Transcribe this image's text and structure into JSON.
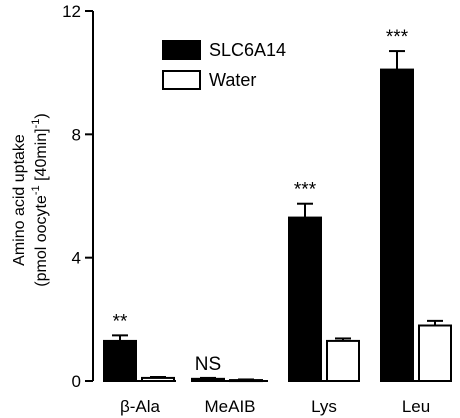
{
  "chart_data": {
    "type": "bar",
    "categories": [
      "β-Ala",
      "MeAIB",
      "Lys",
      "Leu"
    ],
    "series": [
      {
        "name": "SLC6A14",
        "values": [
          1.3,
          0.07,
          5.3,
          10.1
        ],
        "errors": [
          0.18,
          0.03,
          0.45,
          0.6
        ],
        "color": "#000000"
      },
      {
        "name": "Water",
        "values": [
          0.1,
          0.03,
          1.3,
          1.8
        ],
        "errors": [
          0.03,
          0.02,
          0.08,
          0.15
        ],
        "color": "#ffffff"
      }
    ],
    "significance": [
      "**",
      "NS",
      "***",
      "***"
    ],
    "ylabel_line1": "Amino acid uptake",
    "ylabel_line2_a": "(pmol oocyte",
    "ylabel_line2_sup1": "-1",
    "ylabel_line2_b": " [40min]",
    "ylabel_line2_sup2": "-1",
    "ylabel_line2_c": ")",
    "yticks": [
      0,
      4,
      8,
      12
    ],
    "ylim": [
      0,
      12
    ],
    "legend_position": "top-center"
  }
}
